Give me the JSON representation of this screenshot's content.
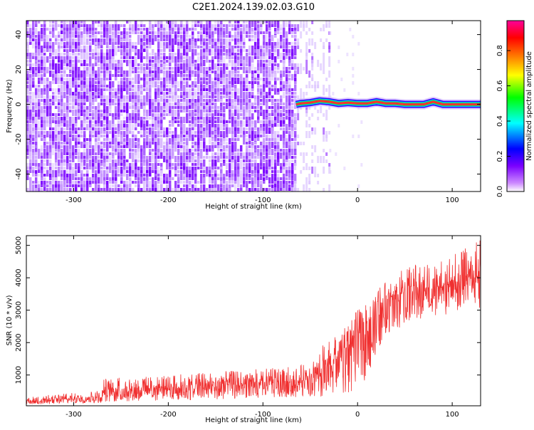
{
  "figure": {
    "title": "C2E1.2024.139.02.03.G10"
  },
  "chart_data": [
    {
      "type": "heatmap",
      "title": "C2E1.2024.139.02.03.G10",
      "xlabel": "Height of straight line (km)",
      "ylabel": "Frequency (Hz)",
      "xlim": [
        -350,
        130
      ],
      "ylim": [
        -50,
        48
      ],
      "x_ticks": [
        -300,
        -200,
        -100,
        0,
        100
      ],
      "y_ticks": [
        -40,
        -20,
        0,
        20,
        40
      ],
      "noise_region": {
        "x_range": [
          -350,
          -67
        ],
        "description_value_range": [
          0.0,
          0.3
        ]
      },
      "sparse_region": {
        "x_range": [
          -67,
          -30
        ]
      },
      "signal_ridge": {
        "x": [
          -65,
          -60,
          -50,
          -40,
          -30,
          -20,
          -10,
          0,
          10,
          20,
          30,
          40,
          50,
          60,
          70,
          80,
          90,
          100,
          110,
          120,
          130
        ],
        "frequency_hz": [
          0.0,
          0.5,
          1.0,
          2.0,
          1.5,
          0.5,
          1.0,
          0.5,
          0.5,
          1.5,
          0.5,
          0.5,
          0.0,
          0.0,
          0.0,
          1.5,
          0.0,
          0.0,
          0.0,
          0.0,
          0.0
        ],
        "peak_amplitude": 0.95
      },
      "colorbar": {
        "label": "Normalized spectral amplitude",
        "ticks": [
          0.0,
          0.2,
          0.4,
          0.6,
          0.8
        ],
        "range": [
          0.0,
          0.97
        ],
        "colors": [
          "#ffffff",
          "#cc88ff",
          "#7a00ff",
          "#0000ff",
          "#00ffff",
          "#00ff00",
          "#ffff00",
          "#ff8800",
          "#ff0000",
          "#ff0099"
        ]
      }
    },
    {
      "type": "line",
      "xlabel": "Height of straight line (km)",
      "ylabel": "SNR (10 * v/v)",
      "xlim": [
        -350,
        130
      ],
      "ylim": [
        50,
        5300
      ],
      "x_ticks": [
        -300,
        -200,
        -100,
        0,
        100
      ],
      "y_ticks": [
        1000,
        2000,
        3000,
        4000,
        5000
      ],
      "color": "#f03030",
      "series": [
        {
          "x": [
            -350,
            -330,
            -300,
            -280,
            -270,
            -268,
            -250,
            -220,
            -200,
            -180,
            -150,
            -120,
            -100,
            -80,
            -60,
            -50,
            -40,
            -30,
            -20,
            -10,
            0,
            10,
            20,
            25,
            30,
            40,
            50,
            60,
            70,
            80,
            90,
            100,
            110,
            120,
            130
          ],
          "lower": [
            100,
            100,
            120,
            130,
            140,
            160,
            180,
            200,
            220,
            230,
            250,
            270,
            280,
            300,
            300,
            320,
            280,
            320,
            350,
            400,
            600,
            900,
            1500,
            1900,
            2200,
            2400,
            2500,
            2600,
            2700,
            2800,
            2850,
            2900,
            2950,
            3000,
            3000
          ],
          "upper": [
            300,
            380,
            450,
            500,
            550,
            900,
            950,
            950,
            1000,
            1050,
            1100,
            1150,
            1200,
            1250,
            1300,
            1400,
            1800,
            2200,
            2400,
            2800,
            3000,
            3200,
            3500,
            3800,
            3900,
            4100,
            4300,
            4400,
            4500,
            4600,
            4650,
            4750,
            4850,
            5000,
            5200
          ],
          "center": [
            180,
            220,
            270,
            300,
            330,
            520,
            560,
            580,
            620,
            650,
            680,
            710,
            740,
            770,
            800,
            850,
            1000,
            1300,
            1600,
            1900,
            2250,
            2600,
            3000,
            3250,
            3350,
            3450,
            3550,
            3600,
            3650,
            3700,
            3750,
            3800,
            3850,
            3950,
            4100
          ]
        }
      ]
    }
  ]
}
